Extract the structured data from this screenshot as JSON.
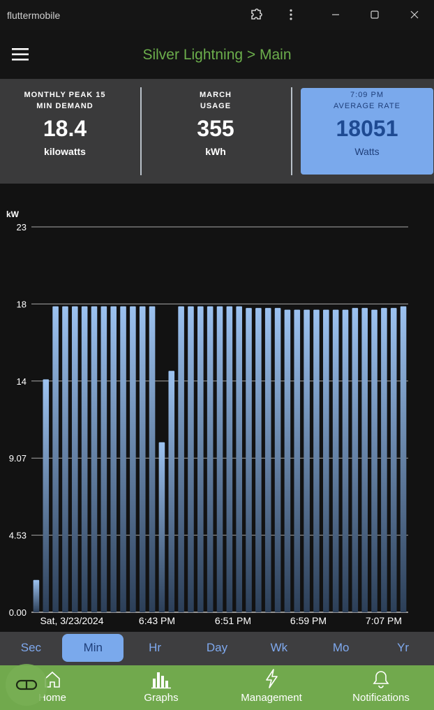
{
  "window": {
    "title": "fluttermobile"
  },
  "appbar": {
    "title": "Silver Lightning > Main"
  },
  "cards": [
    {
      "label_line1": "MONTHLY PEAK 15",
      "label_line2": "MIN DEMAND",
      "value": "18.4",
      "unit": "kilowatts"
    },
    {
      "label_line1": "MARCH",
      "label_line2": "USAGE",
      "value": "355",
      "unit": "kWh"
    },
    {
      "label_line1": "7:09 PM",
      "label_line2": "AVERAGE RATE",
      "value": "18051",
      "unit": "Watts"
    }
  ],
  "chart_data": {
    "type": "bar",
    "ylabel": "kW",
    "yticks": [
      "0.00",
      "4.53",
      "9.07",
      "14",
      "18",
      "23"
    ],
    "ylim": [
      0,
      22.67
    ],
    "x_tick_labels": [
      "Sat, 3/23/2024",
      "6:43 PM",
      "6:51 PM",
      "6:59 PM",
      "7:07 PM"
    ],
    "values": [
      1.9,
      13.7,
      18.0,
      18.0,
      18.0,
      18.0,
      18.0,
      18.0,
      18.0,
      18.0,
      18.0,
      18.0,
      18.0,
      10.0,
      14.2,
      18.0,
      18.0,
      18.0,
      18.0,
      18.0,
      18.0,
      18.0,
      17.9,
      17.9,
      17.9,
      17.9,
      17.8,
      17.8,
      17.8,
      17.8,
      17.8,
      17.8,
      17.8,
      17.9,
      17.9,
      17.8,
      17.9,
      17.9,
      18.0
    ],
    "grid": true,
    "bar_color": "#8db5e8"
  },
  "tabs": [
    "Sec",
    "Min",
    "Hr",
    "Day",
    "Wk",
    "Mo",
    "Yr"
  ],
  "active_tab": "Min",
  "nav": [
    {
      "label": "Home",
      "icon": "home-icon"
    },
    {
      "label": "Graphs",
      "icon": "bar-chart-icon"
    },
    {
      "label": "Management",
      "icon": "lightning-icon"
    },
    {
      "label": "Notifications",
      "icon": "bell-icon"
    }
  ],
  "fab_icon": "infinity-icon"
}
